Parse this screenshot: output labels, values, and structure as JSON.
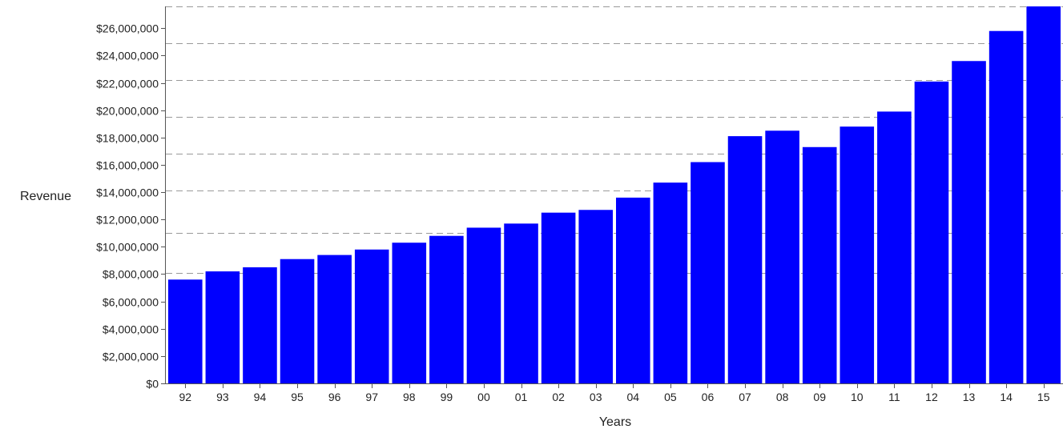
{
  "chart_data": {
    "type": "bar",
    "title": "",
    "xlabel": "Years",
    "ylabel": "Revenue",
    "categories": [
      "92",
      "93",
      "94",
      "95",
      "96",
      "97",
      "98",
      "99",
      "00",
      "01",
      "02",
      "03",
      "04",
      "05",
      "06",
      "07",
      "08",
      "09",
      "10",
      "11",
      "12",
      "13",
      "14",
      "15"
    ],
    "values": [
      7600000,
      8200000,
      8500000,
      9100000,
      9400000,
      9800000,
      10300000,
      10800000,
      11400000,
      11700000,
      12500000,
      12700000,
      13600000,
      14700000,
      16200000,
      18100000,
      18500000,
      17300000,
      18800000,
      19900000,
      22100000,
      23600000,
      25800000,
      27600000
    ],
    "ylim": [
      0,
      27600000
    ],
    "yticks": [
      {
        "value": 0,
        "label": "$0"
      },
      {
        "value": 2000000,
        "label": "$2,000,000"
      },
      {
        "value": 4000000,
        "label": "$4,000,000"
      },
      {
        "value": 6000000,
        "label": "$6,000,000"
      },
      {
        "value": 8000000,
        "label": "$8,000,000"
      },
      {
        "value": 10000000,
        "label": "$10,000,000"
      },
      {
        "value": 12000000,
        "label": "$12,000,000"
      },
      {
        "value": 14000000,
        "label": "$14,000,000"
      },
      {
        "value": 16000000,
        "label": "$16,000,000"
      },
      {
        "value": 18000000,
        "label": "$18,000,000"
      },
      {
        "value": 20000000,
        "label": "$20,000,000"
      },
      {
        "value": 22000000,
        "label": "$22,000,000"
      },
      {
        "value": 24000000,
        "label": "$24,000,000"
      },
      {
        "value": 26000000,
        "label": "$26,000,000"
      }
    ],
    "dashed_gridlines": [
      27600000,
      24900000,
      22200000,
      19500000,
      16800000,
      14100000,
      11000000,
      8100000
    ],
    "grid": true,
    "legend": "none",
    "bar_color": "#0000ff",
    "gridline_color": "#999999"
  }
}
